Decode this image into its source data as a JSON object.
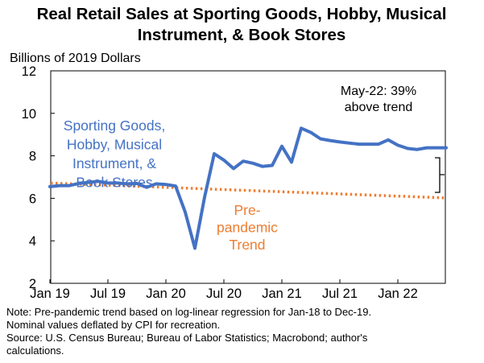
{
  "chart_data": {
    "type": "line",
    "title_lines": [
      "Real Retail Sales at Sporting Goods, Hobby, Musical",
      "Instrument, & Book Stores"
    ],
    "ylabel": "Billions of 2019 Dollars",
    "ylim": [
      2,
      12
    ],
    "yticks": [
      "2",
      "4",
      "6",
      "8",
      "10",
      "12"
    ],
    "xticks": [
      "Jan 19",
      "Jul 19",
      "Jan 20",
      "Jul 20",
      "Jan 21",
      "Jul 21",
      "Jan 22"
    ],
    "xtick_month_index": [
      0,
      6,
      12,
      18,
      24,
      30,
      36
    ],
    "month_range": [
      0,
      41
    ],
    "series": [
      {
        "name": "Sporting Goods, Hobby, Musical Instrument, & Book Stores",
        "label_lines": [
          "Sporting Goods,",
          "Hobby, Musical",
          "Instrument, &",
          "Book Stores"
        ],
        "color": "#4472C4",
        "style": "solid",
        "values": [
          6.55,
          6.6,
          6.6,
          6.7,
          6.75,
          6.8,
          6.72,
          6.72,
          6.68,
          6.7,
          6.52,
          6.68,
          6.65,
          6.58,
          5.35,
          3.65,
          6.05,
          8.1,
          7.8,
          7.4,
          7.75,
          7.65,
          7.5,
          7.55,
          8.45,
          7.7,
          9.3,
          9.1,
          8.8,
          8.72,
          8.65,
          8.6,
          8.55,
          8.55,
          8.55,
          8.75,
          8.5,
          8.35,
          8.3,
          8.38,
          8.38,
          8.38
        ]
      },
      {
        "name": "Pre-pandemic Trend",
        "label_lines": [
          "Pre-",
          "pandemic",
          "Trend"
        ],
        "color": "#ED7D31",
        "style": "dotted",
        "start_value": 6.72,
        "end_value": 6.02
      }
    ],
    "annotation_lines": [
      "May-22: 39%",
      "above trend"
    ],
    "note_lines": [
      "Note: Pre-pandemic trend based on log-linear regression for Jan-18 to Dec-19.",
      "Nominal values deflated by CPI for recreation.",
      "Source: U.S. Census Bureau; Bureau of Labor Statistics; Macrobond; author's",
      "calculations."
    ]
  }
}
